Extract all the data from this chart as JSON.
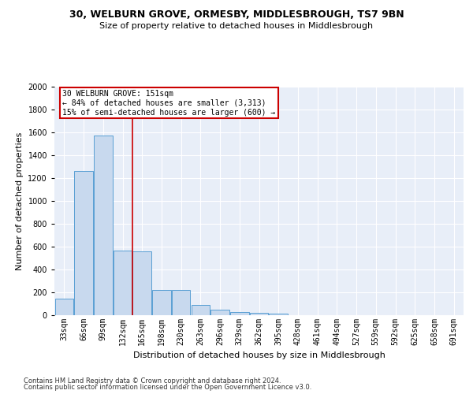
{
  "title1": "30, WELBURN GROVE, ORMESBY, MIDDLESBROUGH, TS7 9BN",
  "title2": "Size of property relative to detached houses in Middlesbrough",
  "xlabel": "Distribution of detached houses by size in Middlesbrough",
  "ylabel": "Number of detached properties",
  "footnote1": "Contains HM Land Registry data © Crown copyright and database right 2024.",
  "footnote2": "Contains public sector information licensed under the Open Government Licence v3.0.",
  "annotation_line1": "30 WELBURN GROVE: 151sqm",
  "annotation_line2": "← 84% of detached houses are smaller (3,313)",
  "annotation_line3": "15% of semi-detached houses are larger (600) →",
  "bar_color": "#c8d9ee",
  "bar_edge_color": "#5a9fd4",
  "vline_color": "#cc0000",
  "annotation_box_color": "#cc0000",
  "background_color": "#e8eef8",
  "grid_color": "#ffffff",
  "categories": [
    "33sqm",
    "66sqm",
    "99sqm",
    "132sqm",
    "165sqm",
    "198sqm",
    "230sqm",
    "263sqm",
    "296sqm",
    "329sqm",
    "362sqm",
    "395sqm",
    "428sqm",
    "461sqm",
    "494sqm",
    "527sqm",
    "559sqm",
    "592sqm",
    "625sqm",
    "658sqm",
    "691sqm"
  ],
  "values": [
    143,
    1265,
    1575,
    565,
    560,
    220,
    220,
    90,
    50,
    30,
    20,
    15,
    0,
    0,
    0,
    0,
    0,
    0,
    0,
    0,
    0
  ],
  "ylim": [
    0,
    2000
  ],
  "yticks": [
    0,
    200,
    400,
    600,
    800,
    1000,
    1200,
    1400,
    1600,
    1800,
    2000
  ],
  "vline_x": 3.5,
  "title1_fontsize": 9,
  "title2_fontsize": 8,
  "ylabel_fontsize": 8,
  "xlabel_fontsize": 8,
  "tick_fontsize": 7,
  "annotation_fontsize": 7,
  "footnote_fontsize": 6
}
